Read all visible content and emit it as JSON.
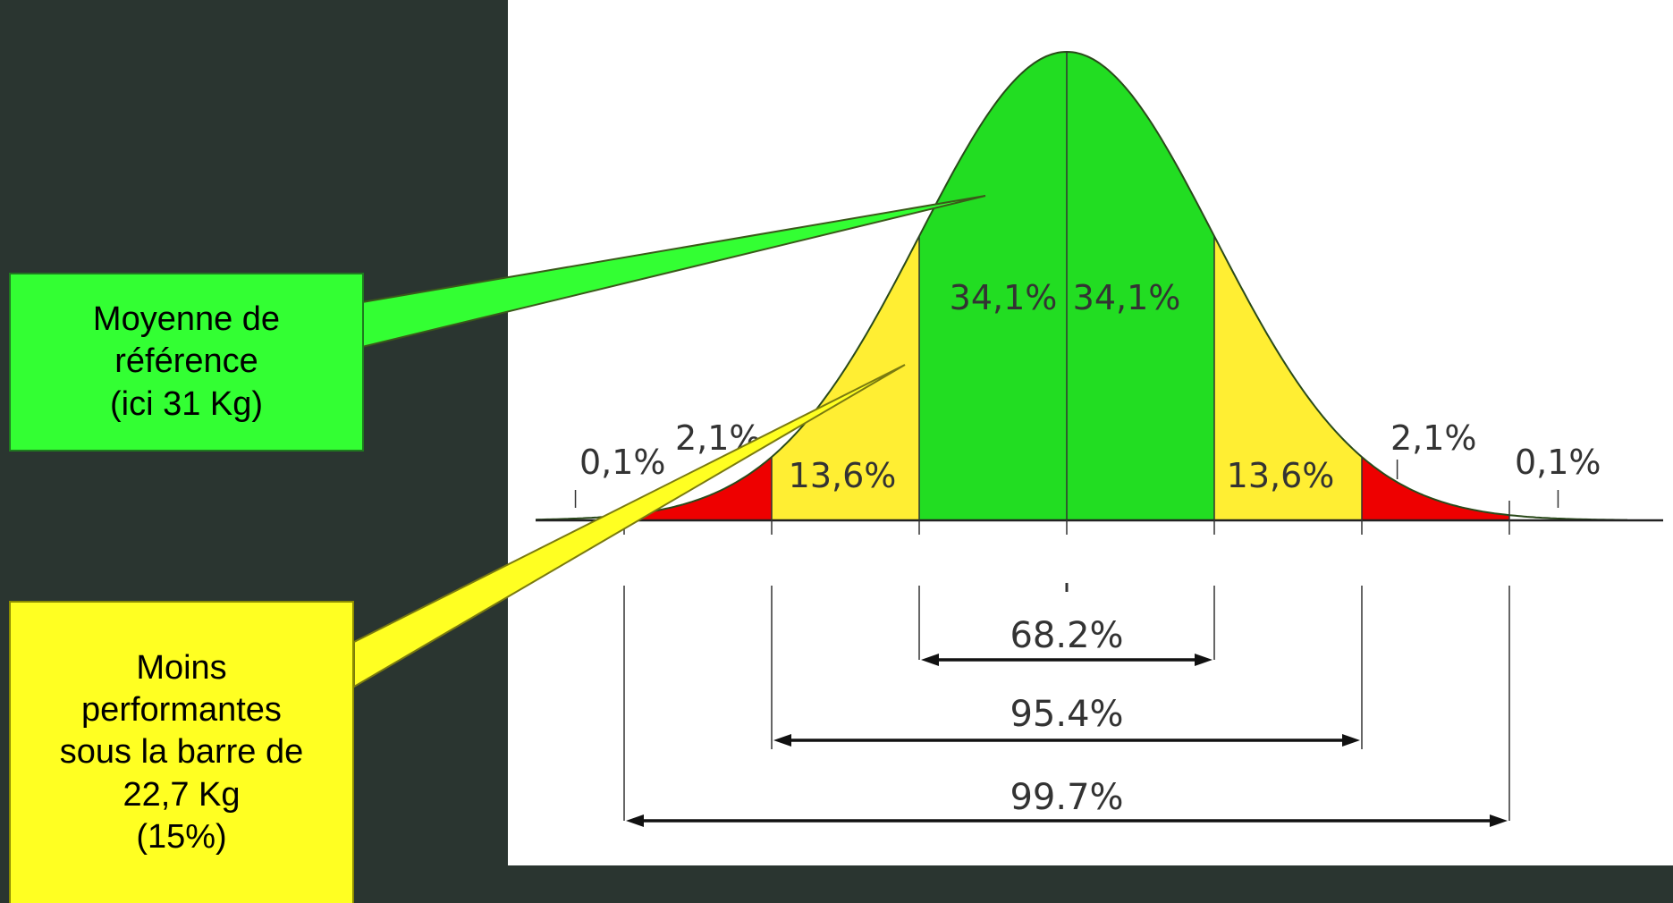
{
  "callouts": {
    "mean": {
      "lines": [
        "Moyenne de",
        "référence",
        "(ici 31 Kg)"
      ],
      "color": "#33ff33"
    },
    "low": {
      "lines": [
        "Moins",
        "performantes",
        "sous la barre de",
        "22,7 Kg",
        "(15%)"
      ],
      "color": "#ffff22"
    }
  },
  "chart_data": {
    "type": "area",
    "distribution": "normal",
    "x_range_sigma": [
      -3.6,
      3.8
    ],
    "sigma_boundaries": [
      -3,
      -2,
      -1,
      0,
      1,
      2,
      3
    ],
    "regions": [
      {
        "from": -4,
        "to": -3,
        "percent_label": "0,1%",
        "color": "#ffffff"
      },
      {
        "from": -3,
        "to": -2,
        "percent_label": "2,1%",
        "color": "#ee0000"
      },
      {
        "from": -2,
        "to": -1,
        "percent_label": "13,6%",
        "color": "#ffee33"
      },
      {
        "from": -1,
        "to": 0,
        "percent_label": "34,1%",
        "color": "#22dd22"
      },
      {
        "from": 0,
        "to": 1,
        "percent_label": "34,1%",
        "color": "#22dd22"
      },
      {
        "from": 1,
        "to": 2,
        "percent_label": "13,6%",
        "color": "#ffee33"
      },
      {
        "from": 2,
        "to": 3,
        "percent_label": "2,1%",
        "color": "#ee0000"
      },
      {
        "from": 3,
        "to": 4,
        "percent_label": "0,1%",
        "color": "#ffffff"
      }
    ],
    "intervals": [
      {
        "from": -1,
        "to": 1,
        "label": "68.2%"
      },
      {
        "from": -2,
        "to": 2,
        "label": "95.4%"
      },
      {
        "from": -3,
        "to": 3,
        "label": "99.7%"
      }
    ],
    "title": "",
    "xlabel": "",
    "ylabel": "",
    "grid": false
  }
}
